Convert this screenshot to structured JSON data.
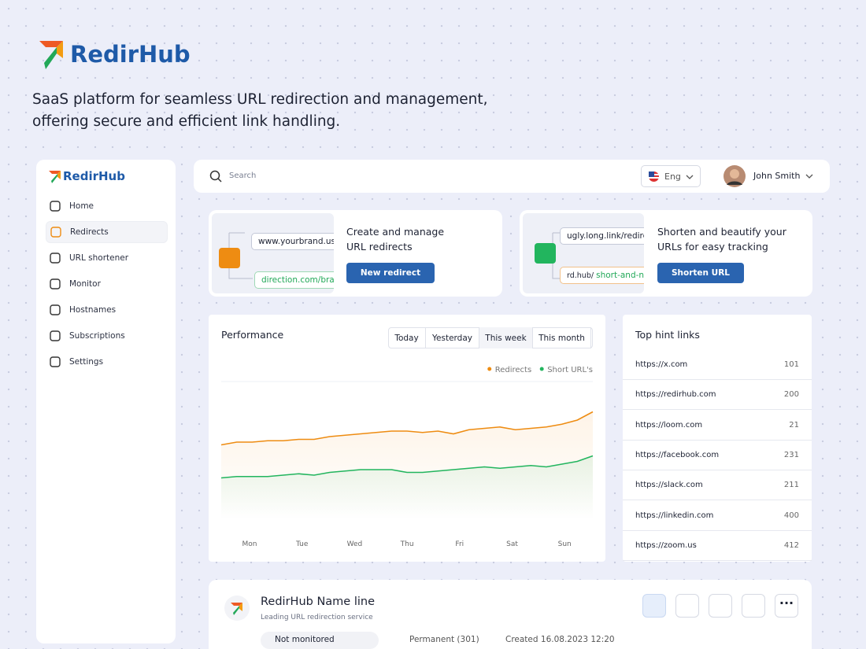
{
  "brand": "RedirHub",
  "tagline": [
    "SaaS platform for seamless URL redirection and management,",
    "offering secure and efficient link handling."
  ],
  "sidebar": {
    "brand": "RedirHub",
    "nav": [
      "Home",
      "Redirects",
      "URL shortener",
      "Monitor",
      "Hostnames",
      "Subscriptions",
      "Settings"
    ],
    "active": 1
  },
  "topbar": {
    "search": "Search",
    "language": "Eng",
    "user": "John Smith"
  },
  "promo": [
    {
      "links": [
        "www.yourbrand.us",
        "direction.com/brand"
      ],
      "text": [
        "Create and manage",
        "URL redirects"
      ],
      "button": "New redirect"
    },
    {
      "links": [
        "ugly.long.link/redirec",
        "rd.hub/",
        "short-and-nice"
      ],
      "text": [
        "Shorten and beautify your",
        "URLs for easy tracking"
      ],
      "button": "Shorten URL"
    }
  ],
  "chart_data": {
    "type": "line",
    "title": "Performance",
    "tabs": [
      "Today",
      "Yesterday",
      "This week",
      "This month"
    ],
    "active_tab": 2,
    "x_labels": [
      "Mon",
      "Tue",
      "Wed",
      "Thu",
      "Fri",
      "Sat",
      "Sun"
    ],
    "ylim": [
      0,
      100
    ],
    "series": [
      {
        "name": "Redirects",
        "color": "#ee8c12",
        "values": [
          54,
          56,
          56,
          57,
          57,
          58,
          58,
          60,
          61,
          62,
          63,
          64,
          64,
          63,
          64,
          62,
          65,
          66,
          67,
          65,
          66,
          67,
          69,
          72,
          78
        ]
      },
      {
        "name": "Short URL's",
        "color": "#22b55e",
        "values": [
          30,
          31,
          31,
          31,
          32,
          33,
          32,
          34,
          35,
          36,
          36,
          36,
          34,
          34,
          35,
          36,
          37,
          38,
          37,
          38,
          39,
          38,
          40,
          42,
          46
        ]
      }
    ]
  },
  "top_links": {
    "title": "Top hint links",
    "rows": [
      [
        "https://x.com",
        101
      ],
      [
        "https://redirhub.com",
        200
      ],
      [
        "https://loom.com",
        21
      ],
      [
        "https://facebook.com",
        231
      ],
      [
        "https://slack.com",
        211
      ],
      [
        "https://linkedin.com",
        400
      ],
      [
        "https://zoom.us",
        412
      ]
    ]
  },
  "item": {
    "name": "RedirHub Name line",
    "subtitle": "Leading URL redirection service",
    "tags": [
      "Not monitored",
      "Permanent (301)",
      "Created 16.08.2023 12:20"
    ]
  }
}
